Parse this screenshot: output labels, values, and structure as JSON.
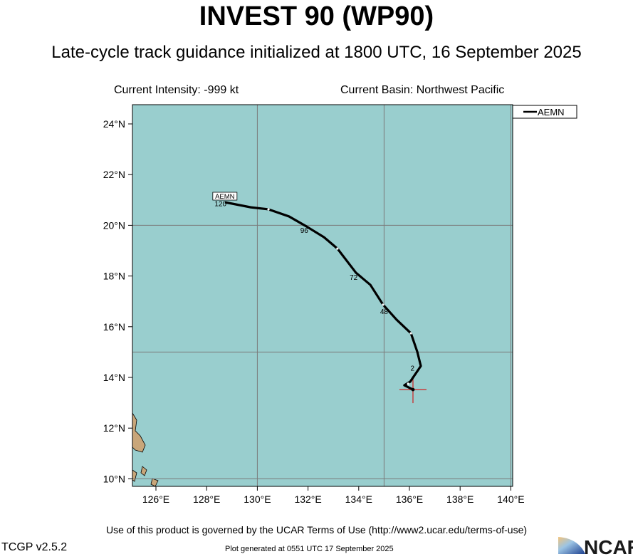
{
  "title": "INVEST 90 (WP90)",
  "subtitle": "Late-cycle track guidance initialized at 1800 UTC, 16 September 2025",
  "intensity": "Current Intensity: -999 kt",
  "basin": "Current Basin: Northwest Pacific",
  "terms": "Use of this product is governed by the UCAR Terms of Use (http://www2.ucar.edu/terms-of-use)",
  "version": "TCGP v2.5.2",
  "generated": "Plot generated at 0551 UTC   17 September 2025",
  "logo_text": "NCAR",
  "legend": {
    "label": "AEMN"
  },
  "colors": {
    "ocean": "#99cece",
    "land": "#c8a67a",
    "track": "#000000",
    "grid": "#7a7a7a",
    "center": "#d02020"
  },
  "map": {
    "lon_range": [
      125.07,
      140.17
    ],
    "lat_range": [
      9.7,
      24.76
    ],
    "lon_ticks": [
      {
        "v": 126,
        "label": "126°E"
      },
      {
        "v": 128,
        "label": "128°E"
      },
      {
        "v": 130,
        "label": "130°E"
      },
      {
        "v": 132,
        "label": "132°E"
      },
      {
        "v": 134,
        "label": "134°E"
      },
      {
        "v": 136,
        "label": "136°E"
      },
      {
        "v": 138,
        "label": "138°E"
      },
      {
        "v": 140,
        "label": "140°E"
      }
    ],
    "lat_ticks": [
      {
        "v": 24,
        "label": "24°N"
      },
      {
        "v": 22,
        "label": "22°N"
      },
      {
        "v": 20,
        "label": "20°N"
      },
      {
        "v": 18,
        "label": "18°N"
      },
      {
        "v": 16,
        "label": "16°N"
      },
      {
        "v": 14,
        "label": "14°N"
      },
      {
        "v": 12,
        "label": "12°N"
      },
      {
        "v": 10,
        "label": "10°N"
      }
    ],
    "grid_lons": [
      130,
      135,
      140
    ],
    "grid_lats": [
      10,
      15,
      20
    ],
    "current_position": {
      "lon": 136.14,
      "lat": 13.52
    },
    "track_name": "AEMN",
    "track": [
      [
        136.14,
        13.52
      ],
      [
        135.8,
        13.69
      ],
      [
        136.03,
        13.83
      ],
      [
        136.45,
        14.45
      ],
      [
        136.31,
        15.01
      ],
      [
        136.06,
        15.74
      ],
      [
        135.49,
        16.28
      ],
      [
        134.96,
        16.87
      ],
      [
        134.46,
        17.65
      ],
      [
        133.89,
        18.13
      ],
      [
        133.16,
        19.08
      ],
      [
        132.63,
        19.53
      ],
      [
        131.93,
        19.96
      ],
      [
        131.25,
        20.35
      ],
      [
        130.44,
        20.63
      ],
      [
        129.74,
        20.71
      ],
      [
        128.72,
        20.91
      ]
    ],
    "markers": [
      [
        135.95,
        13.75
      ],
      [
        136.06,
        15.74
      ],
      [
        134.96,
        16.87
      ],
      [
        133.16,
        19.08
      ],
      [
        130.44,
        20.63
      ]
    ],
    "hour_labels": [
      {
        "text": "2",
        "lon": 136.12,
        "lat": 14.26
      },
      {
        "text": "48",
        "lon": 135.0,
        "lat": 16.5
      },
      {
        "text": "72",
        "lon": 133.8,
        "lat": 17.85
      },
      {
        "text": "96",
        "lon": 131.85,
        "lat": 19.7
      },
      {
        "text": "120",
        "lon": 128.55,
        "lat": 20.75
      }
    ]
  }
}
